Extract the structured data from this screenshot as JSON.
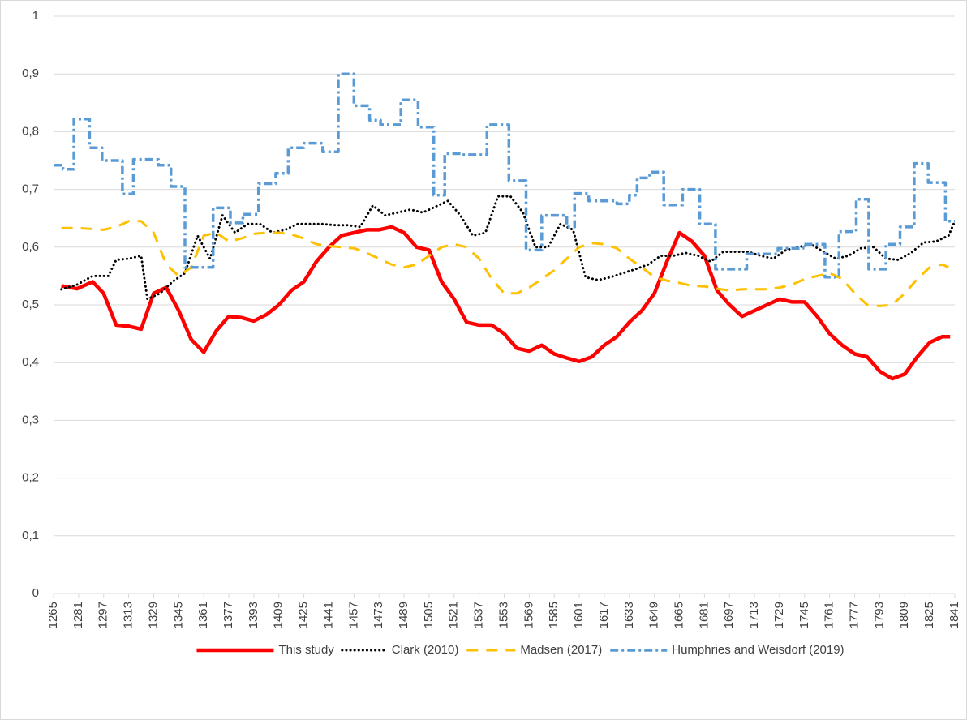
{
  "chart_data": {
    "type": "line",
    "xlim": [
      1265,
      1841
    ],
    "xticks": [
      1265,
      1281,
      1297,
      1313,
      1329,
      1345,
      1361,
      1377,
      1393,
      1409,
      1425,
      1441,
      1457,
      1473,
      1489,
      1505,
      1521,
      1537,
      1553,
      1569,
      1585,
      1601,
      1617,
      1633,
      1649,
      1665,
      1681,
      1697,
      1713,
      1729,
      1745,
      1761,
      1777,
      1793,
      1809,
      1825,
      1841
    ],
    "ylim": [
      0,
      1
    ],
    "yticks": [
      {
        "value": 0,
        "label": "0"
      },
      {
        "value": 0.1,
        "label": "0,1"
      },
      {
        "value": 0.2,
        "label": "0,2"
      },
      {
        "value": 0.3,
        "label": "0,3"
      },
      {
        "value": 0.4,
        "label": "0,4"
      },
      {
        "value": 0.5,
        "label": "0,5"
      },
      {
        "value": 0.6,
        "label": "0,6"
      },
      {
        "value": 0.7,
        "label": "0,7"
      },
      {
        "value": 0.8,
        "label": "0,8"
      },
      {
        "value": 0.9,
        "label": "0,9"
      },
      {
        "value": 1,
        "label": "1"
      }
    ],
    "grid": true,
    "legend": "bottom",
    "series": [
      {
        "name": "This study",
        "color": "#ff0000",
        "line_style": "solid",
        "x": [
          1270,
          1280,
          1290,
          1297,
          1305,
          1313,
          1321,
          1329,
          1337,
          1345,
          1353,
          1361,
          1369,
          1377,
          1385,
          1393,
          1401,
          1409,
          1417,
          1425,
          1433,
          1441,
          1449,
          1457,
          1465,
          1473,
          1481,
          1489,
          1497,
          1505,
          1513,
          1521,
          1529,
          1537,
          1545,
          1553,
          1561,
          1569,
          1577,
          1585,
          1593,
          1601,
          1609,
          1617,
          1625,
          1633,
          1641,
          1649,
          1657,
          1665,
          1673,
          1681,
          1689,
          1697,
          1705,
          1713,
          1721,
          1729,
          1737,
          1745,
          1753,
          1761,
          1769,
          1777,
          1785,
          1793,
          1801,
          1809,
          1817,
          1825,
          1833,
          1838
        ],
        "values": [
          0.533,
          0.528,
          0.54,
          0.52,
          0.465,
          0.463,
          0.458,
          0.52,
          0.53,
          0.49,
          0.44,
          0.418,
          0.455,
          0.48,
          0.478,
          0.472,
          0.483,
          0.5,
          0.525,
          0.54,
          0.575,
          0.6,
          0.62,
          0.625,
          0.63,
          0.63,
          0.635,
          0.625,
          0.6,
          0.595,
          0.54,
          0.51,
          0.47,
          0.465,
          0.465,
          0.45,
          0.425,
          0.42,
          0.43,
          0.415,
          0.408,
          0.402,
          0.41,
          0.43,
          0.445,
          0.47,
          0.49,
          0.52,
          0.575,
          0.625,
          0.61,
          0.585,
          0.525,
          0.5,
          0.48,
          0.49,
          0.5,
          0.51,
          0.505,
          0.505,
          0.48,
          0.45,
          0.43,
          0.415,
          0.41,
          0.385,
          0.372,
          0.38,
          0.41,
          0.435,
          0.445,
          0.445
        ]
      },
      {
        "name": "Clark (2010)",
        "color": "#000000",
        "line_style": "dotted",
        "x": [
          1270,
          1280,
          1290,
          1300,
          1305,
          1313,
          1321,
          1325,
          1333,
          1341,
          1349,
          1357,
          1365,
          1373,
          1381,
          1389,
          1397,
          1405,
          1413,
          1421,
          1429,
          1437,
          1445,
          1453,
          1461,
          1469,
          1477,
          1485,
          1493,
          1501,
          1509,
          1517,
          1525,
          1533,
          1541,
          1549,
          1557,
          1565,
          1573,
          1581,
          1589,
          1597,
          1605,
          1613,
          1621,
          1629,
          1637,
          1645,
          1653,
          1661,
          1669,
          1677,
          1685,
          1693,
          1701,
          1709,
          1717,
          1725,
          1733,
          1741,
          1749,
          1757,
          1765,
          1773,
          1781,
          1789,
          1797,
          1805,
          1813,
          1821,
          1829,
          1837,
          1841
        ],
        "values": [
          0.527,
          0.535,
          0.55,
          0.55,
          0.578,
          0.58,
          0.585,
          0.51,
          0.52,
          0.54,
          0.555,
          0.62,
          0.58,
          0.655,
          0.625,
          0.64,
          0.64,
          0.625,
          0.63,
          0.64,
          0.64,
          0.64,
          0.638,
          0.638,
          0.635,
          0.672,
          0.655,
          0.66,
          0.665,
          0.66,
          0.67,
          0.68,
          0.655,
          0.62,
          0.625,
          0.688,
          0.688,
          0.66,
          0.6,
          0.6,
          0.64,
          0.63,
          0.548,
          0.543,
          0.548,
          0.555,
          0.562,
          0.57,
          0.585,
          0.585,
          0.59,
          0.585,
          0.575,
          0.592,
          0.592,
          0.592,
          0.585,
          0.58,
          0.595,
          0.6,
          0.605,
          0.592,
          0.58,
          0.585,
          0.598,
          0.6,
          0.58,
          0.578,
          0.59,
          0.608,
          0.61,
          0.62,
          0.645
        ]
      },
      {
        "name": "Madsen (2017)",
        "color": "#ffc000",
        "line_style": "dashed",
        "x": [
          1270,
          1281,
          1297,
          1305,
          1313,
          1321,
          1329,
          1337,
          1345,
          1353,
          1361,
          1369,
          1377,
          1385,
          1393,
          1401,
          1409,
          1417,
          1425,
          1433,
          1441,
          1449,
          1457,
          1465,
          1473,
          1481,
          1489,
          1497,
          1505,
          1513,
          1521,
          1529,
          1537,
          1545,
          1553,
          1561,
          1569,
          1577,
          1585,
          1593,
          1601,
          1609,
          1617,
          1625,
          1633,
          1641,
          1649,
          1657,
          1665,
          1673,
          1681,
          1689,
          1697,
          1705,
          1713,
          1721,
          1729,
          1737,
          1745,
          1753,
          1761,
          1769,
          1777,
          1785,
          1793,
          1801,
          1809,
          1817,
          1825,
          1833,
          1837
        ],
        "values": [
          0.633,
          0.633,
          0.63,
          0.635,
          0.645,
          0.645,
          0.625,
          0.57,
          0.55,
          0.565,
          0.62,
          0.625,
          0.61,
          0.615,
          0.623,
          0.625,
          0.625,
          0.622,
          0.615,
          0.605,
          0.602,
          0.6,
          0.598,
          0.59,
          0.58,
          0.57,
          0.565,
          0.57,
          0.585,
          0.6,
          0.605,
          0.6,
          0.58,
          0.545,
          0.52,
          0.52,
          0.53,
          0.545,
          0.56,
          0.58,
          0.6,
          0.607,
          0.605,
          0.598,
          0.58,
          0.565,
          0.548,
          0.542,
          0.538,
          0.533,
          0.532,
          0.528,
          0.525,
          0.527,
          0.527,
          0.527,
          0.53,
          0.535,
          0.545,
          0.55,
          0.555,
          0.545,
          0.52,
          0.5,
          0.498,
          0.5,
          0.52,
          0.545,
          0.565,
          0.57,
          0.565
        ]
      },
      {
        "name": "Humphries and Weisdorf (2019)",
        "color": "#5b9bd5",
        "line_style": "dash-dot",
        "x": [
          1265,
          1271,
          1271,
          1278,
          1278,
          1288,
          1288,
          1296,
          1296,
          1309,
          1309,
          1316,
          1316,
          1332,
          1332,
          1340,
          1340,
          1349,
          1349,
          1367,
          1367,
          1378,
          1378,
          1386,
          1386,
          1396,
          1396,
          1407,
          1407,
          1415,
          1415,
          1425,
          1425,
          1437,
          1437,
          1447,
          1447,
          1457,
          1457,
          1467,
          1467,
          1474,
          1474,
          1487,
          1487,
          1498,
          1498,
          1508,
          1508,
          1515,
          1515,
          1526,
          1526,
          1542,
          1542,
          1556,
          1556,
          1567,
          1567,
          1577,
          1577,
          1593,
          1593,
          1598,
          1598,
          1607,
          1607,
          1625,
          1625,
          1633,
          1633,
          1638,
          1638,
          1646,
          1646,
          1655,
          1655,
          1667,
          1667,
          1678,
          1678,
          1688,
          1688,
          1708,
          1708,
          1728,
          1728,
          1744,
          1744,
          1758,
          1758,
          1767,
          1767,
          1778,
          1778,
          1786,
          1786,
          1797,
          1797,
          1806,
          1806,
          1815,
          1815,
          1824,
          1824,
          1835,
          1835,
          1841
        ],
        "values": [
          0.742,
          0.742,
          0.735,
          0.735,
          0.822,
          0.822,
          0.772,
          0.772,
          0.75,
          0.75,
          0.692,
          0.692,
          0.752,
          0.752,
          0.742,
          0.742,
          0.705,
          0.705,
          0.565,
          0.565,
          0.668,
          0.668,
          0.642,
          0.642,
          0.657,
          0.657,
          0.71,
          0.71,
          0.728,
          0.728,
          0.772,
          0.772,
          0.78,
          0.78,
          0.765,
          0.765,
          0.9,
          0.9,
          0.845,
          0.845,
          0.82,
          0.82,
          0.812,
          0.812,
          0.855,
          0.855,
          0.808,
          0.808,
          0.69,
          0.69,
          0.762,
          0.762,
          0.76,
          0.76,
          0.812,
          0.812,
          0.715,
          0.715,
          0.595,
          0.595,
          0.655,
          0.655,
          0.635,
          0.635,
          0.693,
          0.693,
          0.68,
          0.68,
          0.675,
          0.675,
          0.69,
          0.69,
          0.72,
          0.72,
          0.73,
          0.73,
          0.673,
          0.673,
          0.7,
          0.7,
          0.64,
          0.64,
          0.562,
          0.562,
          0.588,
          0.588,
          0.598,
          0.598,
          0.605,
          0.605,
          0.548,
          0.548,
          0.627,
          0.627,
          0.683,
          0.683,
          0.562,
          0.562,
          0.605,
          0.605,
          0.635,
          0.635,
          0.745,
          0.745,
          0.712,
          0.712,
          0.645,
          0.645
        ]
      }
    ]
  }
}
